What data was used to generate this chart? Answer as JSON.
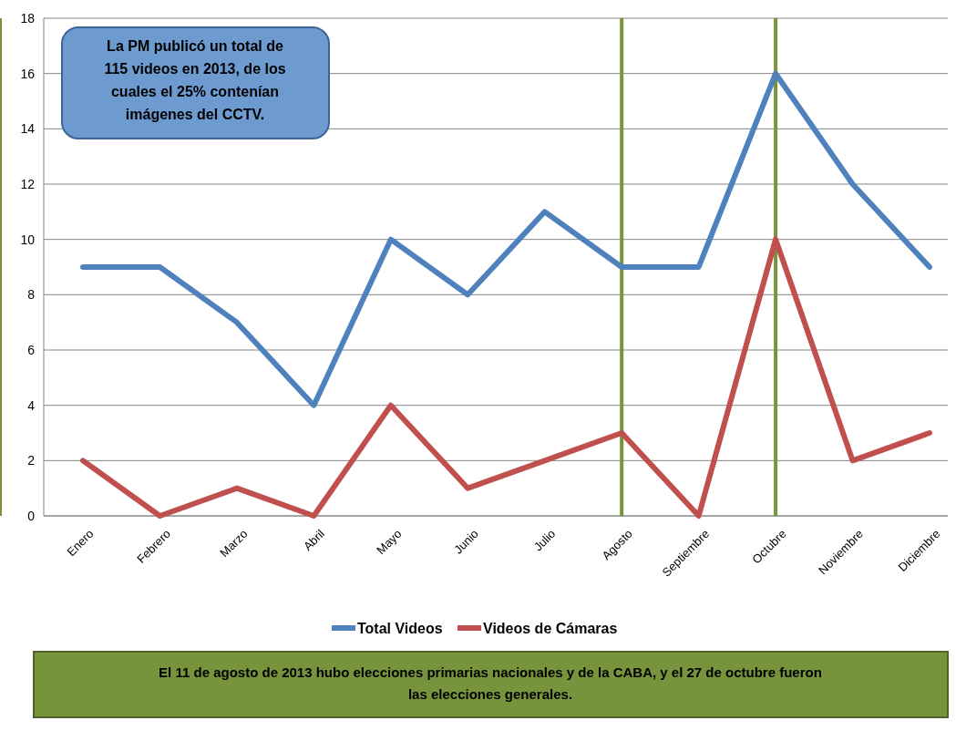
{
  "chart_data": {
    "type": "line",
    "categories": [
      "Enero",
      "Febrero",
      "Marzo",
      "Abril",
      "Mayo",
      "Junio",
      "Julio",
      "Agosto",
      "Septiembre",
      "Octubre",
      "Noviembre",
      "Diciembre"
    ],
    "series": [
      {
        "name": "Total Videos",
        "color": "#4f81bd",
        "values": [
          9,
          9,
          7,
          4,
          10,
          8,
          11,
          9,
          9,
          16,
          12,
          9
        ]
      },
      {
        "name": "Videos de Cámaras",
        "color": "#c0504d",
        "values": [
          2,
          0,
          1,
          0,
          4,
          1,
          2,
          3,
          0,
          10,
          2,
          3
        ]
      }
    ],
    "ylim": [
      0,
      18
    ],
    "yticks": [
      0,
      2,
      4,
      6,
      8,
      10,
      12,
      14,
      16,
      18
    ],
    "grid": "y",
    "legend": "bottom",
    "marker": "none",
    "line_style": "solid",
    "ref_lines": [
      {
        "axis": "x",
        "value": "Agosto",
        "color": "#77933c"
      },
      {
        "axis": "x",
        "value": "Octubre",
        "color": "#77933c"
      }
    ],
    "annotations": [
      "La PM publicó un total de 115 videos en 2013, de los cuales el 25% contenían imágenes del CCTV.",
      "El 11 de agosto de 2013 hubo elecciones primarias nacionales y de la CABA, y el 27 de octubre fueron las elecciones generales."
    ]
  }
}
